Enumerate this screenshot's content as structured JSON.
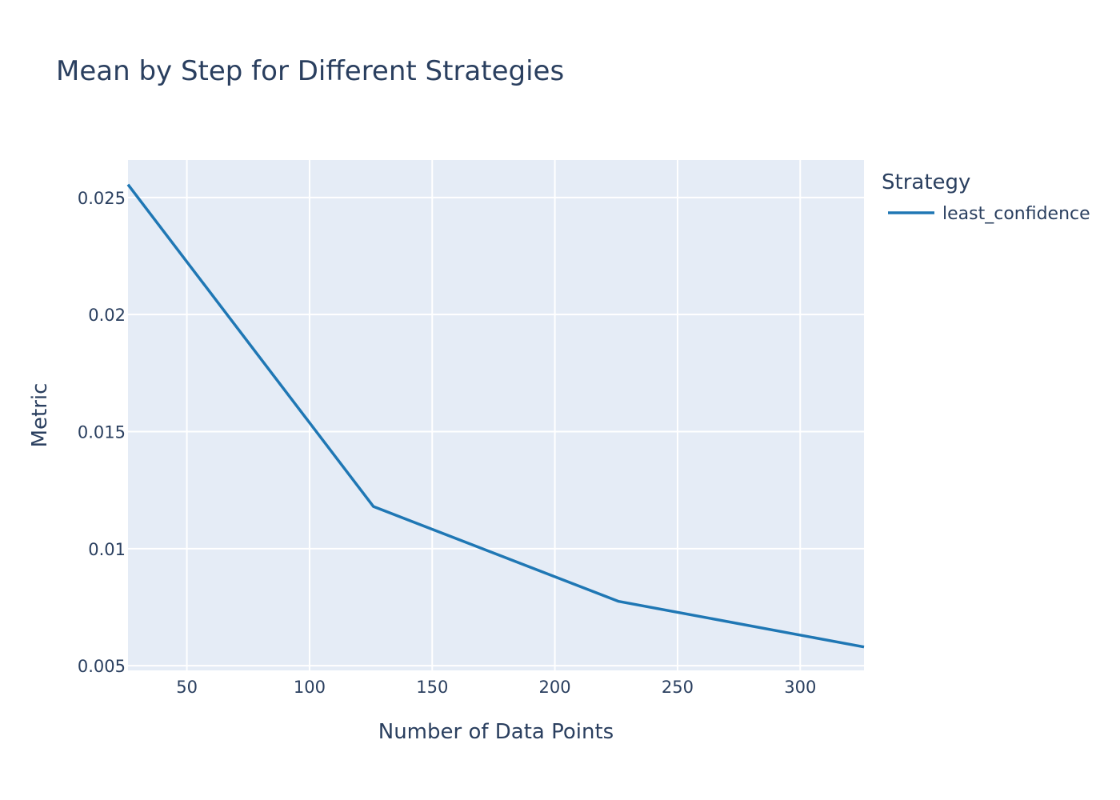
{
  "chart_data": {
    "type": "line",
    "title": "Mean by Step for Different Strategies",
    "xlabel": "Number of Data Points",
    "ylabel": "Metric",
    "xlim": [
      26,
      326
    ],
    "ylim": [
      0.0048,
      0.0266
    ],
    "x_ticks": [
      50,
      100,
      150,
      200,
      250,
      300
    ],
    "x_tick_labels": [
      "50",
      "100",
      "150",
      "200",
      "250",
      "300"
    ],
    "y_ticks": [
      0.005,
      0.01,
      0.015,
      0.02,
      0.025
    ],
    "y_tick_labels": [
      "0.005",
      "0.01",
      "0.015",
      "0.02",
      "0.025"
    ],
    "grid": true,
    "legend": {
      "title": "Strategy",
      "position": "right"
    },
    "series": [
      {
        "name": "least_confidence",
        "color": "#1f77b4",
        "x": [
          26,
          126,
          226,
          326
        ],
        "y": [
          0.02555,
          0.0118,
          0.00775,
          0.0058
        ]
      }
    ],
    "colors": {
      "plot_background": "#e5ecf6",
      "grid": "#ffffff",
      "text": "#2a3f5f"
    }
  }
}
